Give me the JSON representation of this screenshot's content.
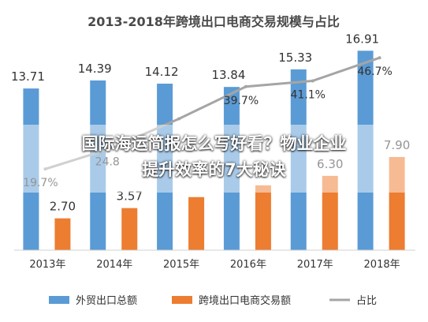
{
  "chart_data": {
    "type": "bar",
    "title": "2013-2018年跨境出口电商交易规模与占比",
    "categories": [
      "2013年",
      "2014年",
      "2015年",
      "2016年",
      "2017年",
      "2018年"
    ],
    "series": [
      {
        "name": "外贸出口总额",
        "kind": "bar",
        "color": "#5b9bd5",
        "values": [
          13.71,
          14.39,
          14.12,
          13.84,
          15.33,
          16.91
        ],
        "labels": [
          "13.71",
          "14.39",
          "14.12",
          "13.84",
          "15.33",
          "16.91"
        ]
      },
      {
        "name": "跨境出口电商交易额",
        "kind": "bar",
        "color": "#ed7d31",
        "values": [
          2.7,
          3.57,
          4.5,
          5.5,
          6.3,
          7.9
        ],
        "labels": [
          "2.70",
          "3.57",
          "",
          "",
          "6.30",
          "7.90"
        ]
      },
      {
        "name": "占比",
        "kind": "line",
        "color": "#a5a5a5",
        "values": [
          19.7,
          24.8,
          31.9,
          39.7,
          41.1,
          46.7
        ],
        "labels": [
          "19.7%",
          "24.8",
          "",
          "39.7%",
          "41.1%",
          "46.7%"
        ]
      }
    ],
    "ylim": [
      0,
      18
    ],
    "line_ylim": [
      0,
      50
    ],
    "grid": false,
    "legend": "bottom"
  },
  "overlay": {
    "line1": "国际海运简报怎么写好看？物业企业",
    "line2": "提升效率的7大秘诀"
  }
}
